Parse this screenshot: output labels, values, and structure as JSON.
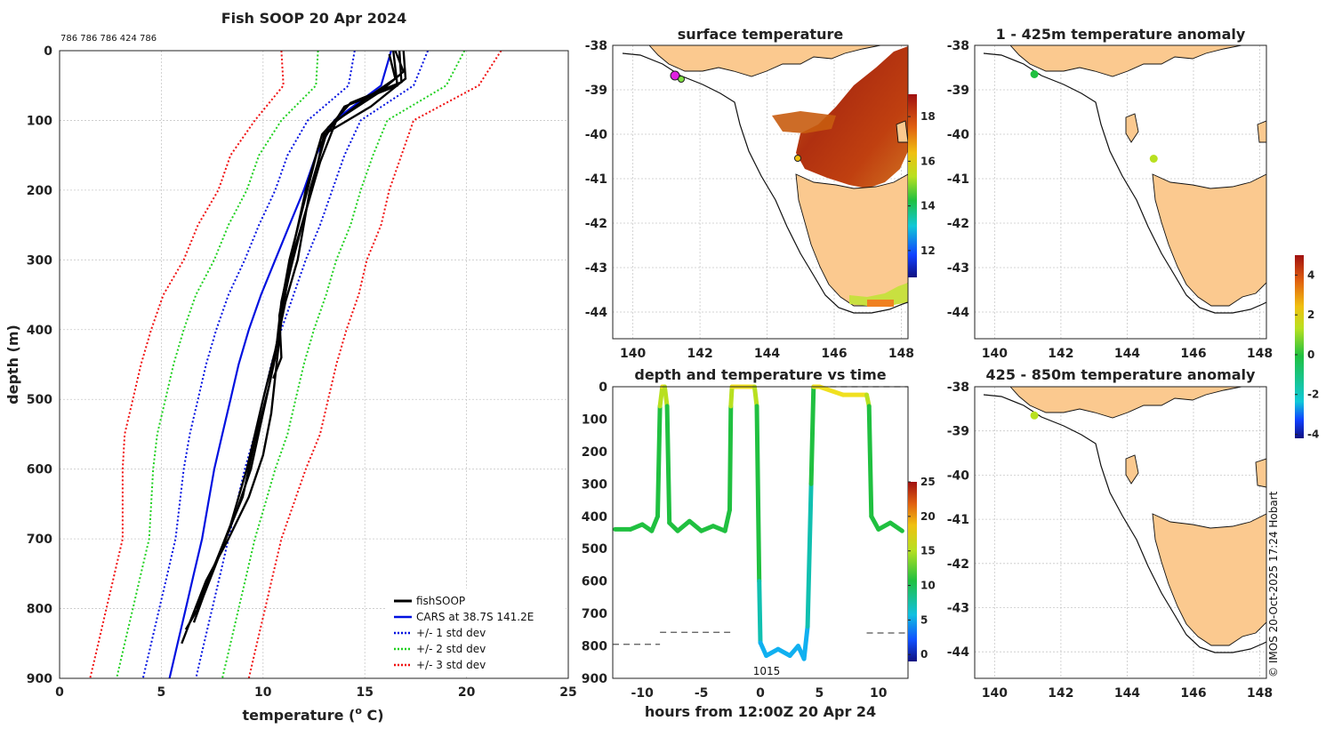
{
  "credit": "© IMOS 20-Oct-2025 17:24 Hobart",
  "chart_data": [
    {
      "id": "profile",
      "type": "line",
      "title": "Fish SOOP 20 Apr 2024",
      "profile_ids": "786 786 786 424 786",
      "xlabel": "temperature (",
      "xlabel_sup": "o",
      "xlabel_end": " C)",
      "ylabel": "depth (m)",
      "xlim": [
        0,
        25
      ],
      "ylim": [
        0,
        900
      ],
      "xticks": [
        "0",
        "5",
        "10",
        "15",
        "20",
        "25"
      ],
      "yticks": [
        "0",
        "100",
        "200",
        "300",
        "400",
        "500",
        "600",
        "700",
        "800",
        "900"
      ],
      "legend": [
        "fishSOOP",
        "CARS at 38.7S 141.2E",
        "+/- 1 std dev",
        "+/- 2 std dev",
        "+/- 3 std dev"
      ],
      "series_colors": [
        "#000000",
        "#0010e0",
        "#0010e0",
        "#20d020",
        "#f01010"
      ],
      "depth": [
        0,
        50,
        100,
        150,
        200,
        250,
        300,
        350,
        400,
        450,
        500,
        550,
        600,
        650,
        700,
        750,
        800,
        850,
        900
      ],
      "cars_mean": [
        16.3,
        15.8,
        13.5,
        12.6,
        12.0,
        11.3,
        10.6,
        9.9,
        9.3,
        8.8,
        8.4,
        8.0,
        7.6,
        7.3,
        7.0,
        6.6,
        6.2,
        5.8,
        5.4
      ],
      "std1": [
        1.8,
        1.6,
        1.3,
        1.4,
        1.4,
        1.5,
        1.5,
        1.6,
        1.6,
        1.6,
        1.6,
        1.6,
        1.5,
        1.4,
        1.3,
        1.3,
        1.3,
        1.3,
        1.3
      ],
      "fishsoop": [
        [
          [
            16.9,
            0
          ],
          [
            17.0,
            40
          ],
          [
            15.3,
            80
          ],
          [
            13.0,
            120
          ],
          [
            12.4,
            200
          ],
          [
            11.6,
            280
          ],
          [
            11.0,
            360
          ],
          [
            10.7,
            440
          ],
          [
            10.4,
            520
          ],
          [
            10.0,
            580
          ],
          [
            9.3,
            640
          ],
          [
            8.3,
            700
          ],
          [
            7.2,
            760
          ],
          [
            6.4,
            820
          ],
          [
            6.0,
            850
          ]
        ],
        [
          [
            16.7,
            0
          ],
          [
            16.8,
            45
          ],
          [
            14.3,
            75
          ],
          [
            12.9,
            120
          ],
          [
            12.1,
            200
          ],
          [
            11.5,
            280
          ],
          [
            10.9,
            360
          ],
          [
            10.6,
            440
          ],
          [
            10.0,
            520
          ],
          [
            9.4,
            600
          ],
          [
            8.7,
            660
          ],
          [
            7.9,
            720
          ],
          [
            7.1,
            780
          ],
          [
            6.6,
            820
          ]
        ],
        [
          [
            16.4,
            0
          ],
          [
            16.6,
            50
          ],
          [
            14.0,
            80
          ],
          [
            12.7,
            140
          ],
          [
            12.0,
            220
          ],
          [
            11.3,
            300
          ],
          [
            10.8,
            380
          ],
          [
            10.9,
            440
          ],
          [
            10.5,
            470
          ]
        ],
        [
          [
            16.2,
            5
          ],
          [
            16.5,
            40
          ],
          [
            15.0,
            70
          ],
          [
            13.2,
            110
          ],
          [
            12.3,
            200
          ],
          [
            11.7,
            300
          ],
          [
            11.1,
            360
          ],
          [
            10.6,
            430
          ],
          [
            10.0,
            500
          ],
          [
            9.2,
            600
          ],
          [
            8.4,
            680
          ],
          [
            7.6,
            740
          ],
          [
            6.8,
            800
          ],
          [
            6.2,
            830
          ]
        ],
        [
          [
            16.5,
            0
          ],
          [
            16.9,
            30
          ],
          [
            15.7,
            60
          ],
          [
            13.6,
            100
          ],
          [
            12.8,
            160
          ],
          [
            12.0,
            240
          ],
          [
            11.2,
            330
          ],
          [
            10.8,
            400
          ],
          [
            10.3,
            480
          ],
          [
            9.6,
            560
          ],
          [
            9.0,
            640
          ],
          [
            8.0,
            710
          ],
          [
            7.3,
            760
          ],
          [
            6.7,
            800
          ]
        ]
      ]
    },
    {
      "id": "sst_map",
      "type": "heatmap",
      "title": "surface temperature",
      "xticks": [
        "140",
        "142",
        "144",
        "146",
        "148"
      ],
      "yticks": [
        "-38",
        "-39",
        "-40",
        "-41",
        "-42",
        "-43",
        "-44"
      ],
      "xlim": [
        139.4,
        148.2
      ],
      "ylim": [
        -44.6,
        -38
      ],
      "colorbar_ticks": [
        "12",
        "14",
        "16",
        "18"
      ],
      "colorbar_range": [
        10.8,
        19.0
      ]
    },
    {
      "id": "depth_time",
      "type": "scatter",
      "title": "depth and temperature vs time",
      "xlabel": "hours from 12:00Z 20 Apr 24",
      "xticks": [
        "-10",
        "-5",
        "0",
        "5",
        "10"
      ],
      "yticks": [
        "0",
        "100",
        "200",
        "300",
        "400",
        "500",
        "600",
        "700",
        "800",
        "900"
      ],
      "xlim": [
        -12.5,
        12.5
      ],
      "ylim": [
        0,
        900
      ],
      "annotation": "1015",
      "colorbar_ticks": [
        "0",
        "5",
        "10",
        "15",
        "20",
        "25"
      ],
      "colorbar_range": [
        -1,
        25
      ],
      "bottom_depth_segments": [
        [
          [
            -12.5,
            795
          ],
          [
            -8.5,
            795
          ]
        ],
        [
          [
            -8.5,
            758
          ],
          [
            -2.5,
            758
          ]
        ],
        [
          [
            9,
            760
          ],
          [
            12.5,
            760
          ]
        ],
        [
          [
            5,
            0
          ],
          [
            12.5,
            0
          ]
        ]
      ],
      "track": [
        [
          -12.3,
          440
        ],
        [
          -11,
          440
        ],
        [
          -10,
          425
        ],
        [
          -9.2,
          445
        ],
        [
          -8.7,
          400
        ],
        [
          -8.5,
          60
        ],
        [
          -8.3,
          0
        ],
        [
          -8.1,
          0
        ],
        [
          -7.9,
          60
        ],
        [
          -7.7,
          420
        ],
        [
          -7,
          445
        ],
        [
          -6,
          415
        ],
        [
          -5,
          445
        ],
        [
          -4,
          430
        ],
        [
          -3,
          445
        ],
        [
          -2.6,
          380
        ],
        [
          -2.5,
          60
        ],
        [
          -2.4,
          0
        ],
        [
          -0.5,
          0
        ],
        [
          -0.3,
          60
        ],
        [
          -0.1,
          600
        ],
        [
          0,
          790
        ],
        [
          0.5,
          830
        ],
        [
          1.5,
          810
        ],
        [
          2.5,
          830
        ],
        [
          3.2,
          800
        ],
        [
          3.7,
          840
        ],
        [
          4.0,
          740
        ],
        [
          4.3,
          300
        ],
        [
          4.5,
          0
        ],
        [
          5,
          0
        ],
        [
          7,
          25
        ],
        [
          9,
          25
        ],
        [
          9.2,
          60
        ],
        [
          9.4,
          400
        ],
        [
          10,
          440
        ],
        [
          11,
          420
        ],
        [
          12,
          445
        ]
      ]
    },
    {
      "id": "anom_upper",
      "type": "heatmap",
      "title": "1 - 425m temperature anomaly",
      "xticks": [
        "140",
        "142",
        "144",
        "146",
        "148"
      ],
      "yticks": [
        "-38",
        "-39",
        "-40",
        "-41",
        "-42",
        "-43",
        "-44"
      ],
      "xlim": [
        139.4,
        148.2
      ],
      "ylim": [
        -44.6,
        -38
      ],
      "points": [
        [
          141.2,
          -38.65,
          0.2
        ],
        [
          144.8,
          -40.55,
          0.6
        ]
      ]
    },
    {
      "id": "anom_lower",
      "type": "heatmap",
      "title": "425 - 850m temperature anomaly",
      "xticks": [
        "140",
        "142",
        "144",
        "146",
        "148"
      ],
      "yticks": [
        "-38",
        "-39",
        "-40",
        "-41",
        "-42",
        "-43",
        "-44"
      ],
      "xlim": [
        139.4,
        148.2
      ],
      "ylim": [
        -44.6,
        -38
      ],
      "points": [
        [
          141.2,
          -38.65,
          0.6
        ]
      ],
      "colorbar_ticks": [
        "4",
        "2",
        "0",
        "-2",
        "-4"
      ],
      "colorbar_range": [
        -4.2,
        5
      ]
    }
  ]
}
